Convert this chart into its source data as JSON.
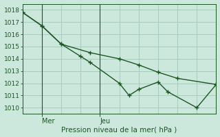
{
  "bg_color": "#cce8dc",
  "grid_color": "#a8ccbc",
  "line_color": "#1a5520",
  "xlabel": "Pression niveau de la mer( hPa )",
  "ylim": [
    1009.5,
    1018.5
  ],
  "yticks": [
    1010,
    1011,
    1012,
    1013,
    1014,
    1015,
    1016,
    1017,
    1018
  ],
  "xlim": [
    0,
    10
  ],
  "xticks_major": [
    1,
    4
  ],
  "xtick_labels": [
    "Mer",
    "Jeu"
  ],
  "vline_positions": [
    1,
    4
  ],
  "line1_x": [
    0,
    1,
    2,
    3,
    3.5,
    5,
    5.5,
    6,
    7,
    7.5,
    9,
    10
  ],
  "line1_y": [
    1017.8,
    1016.7,
    1015.2,
    1014.2,
    1013.7,
    1012.0,
    1011.0,
    1011.5,
    1012.1,
    1011.3,
    1010.0,
    1011.9
  ],
  "line2_x": [
    0,
    1,
    2,
    3.5,
    5,
    6,
    7,
    8,
    10
  ],
  "line2_y": [
    1017.8,
    1016.7,
    1015.2,
    1014.5,
    1014.0,
    1013.5,
    1012.9,
    1012.4,
    1011.9
  ],
  "marker": "+",
  "markersize": 4,
  "linewidth": 1.0
}
